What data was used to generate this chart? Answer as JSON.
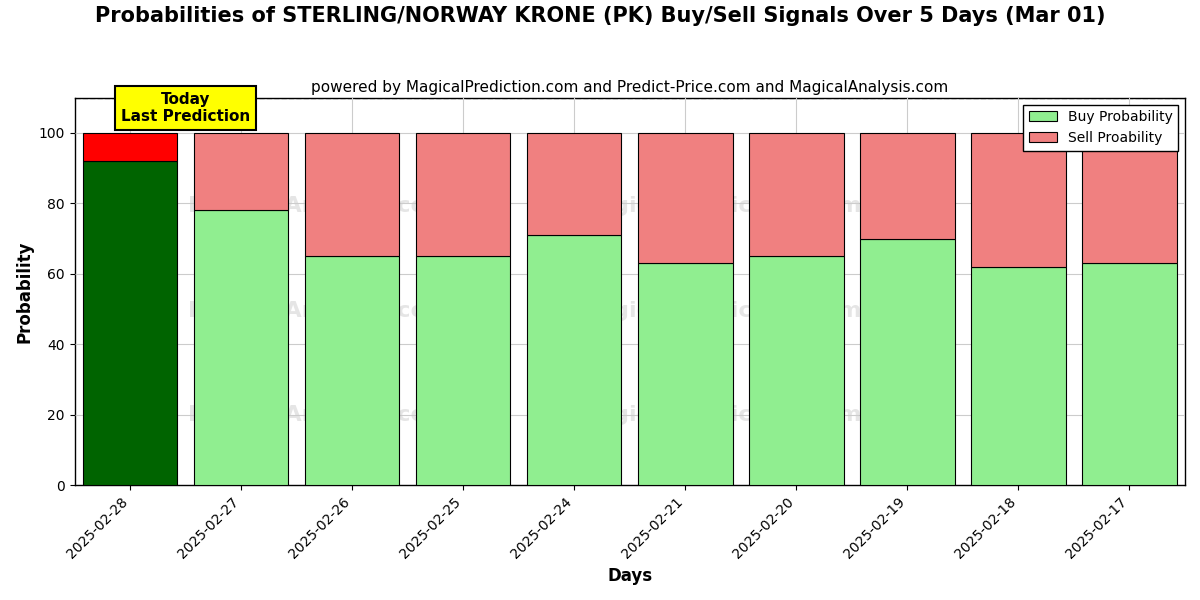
{
  "title": "Probabilities of STERLING/NORWAY KRONE (PK) Buy/Sell Signals Over 5 Days (Mar 01)",
  "subtitle": "powered by MagicalPrediction.com and Predict-Price.com and MagicalAnalysis.com",
  "xlabel": "Days",
  "ylabel": "Probability",
  "categories": [
    "2025-02-28",
    "2025-02-27",
    "2025-02-26",
    "2025-02-25",
    "2025-02-24",
    "2025-02-21",
    "2025-02-20",
    "2025-02-19",
    "2025-02-18",
    "2025-02-17"
  ],
  "buy_values": [
    92,
    78,
    65,
    65,
    71,
    63,
    65,
    70,
    62,
    63
  ],
  "sell_values": [
    8,
    22,
    35,
    35,
    29,
    37,
    35,
    30,
    38,
    37
  ],
  "buy_colors": [
    "#006400",
    "#90EE90",
    "#90EE90",
    "#90EE90",
    "#90EE90",
    "#90EE90",
    "#90EE90",
    "#90EE90",
    "#90EE90",
    "#90EE90"
  ],
  "sell_colors": [
    "#FF0000",
    "#F08080",
    "#F08080",
    "#F08080",
    "#F08080",
    "#F08080",
    "#F08080",
    "#F08080",
    "#F08080",
    "#F08080"
  ],
  "light_buy_color": "#90EE90",
  "light_sell_color": "#F08080",
  "dark_buy_color": "#006400",
  "red_sell_color": "#FF0000",
  "bar_edge_color": "black",
  "bar_edge_width": 0.8,
  "today_box_color": "#FFFF00",
  "today_text": "Today\nLast Prediction",
  "legend_buy": "Buy Probability",
  "legend_sell": "Sell Proability",
  "ylim": [
    0,
    110
  ],
  "yticks": [
    0,
    20,
    40,
    60,
    80,
    100
  ],
  "dashed_line_y": 110,
  "grid_color": "#cccccc",
  "background_color": "#ffffff",
  "title_fontsize": 15,
  "subtitle_fontsize": 11,
  "axis_label_fontsize": 12,
  "tick_fontsize": 10
}
